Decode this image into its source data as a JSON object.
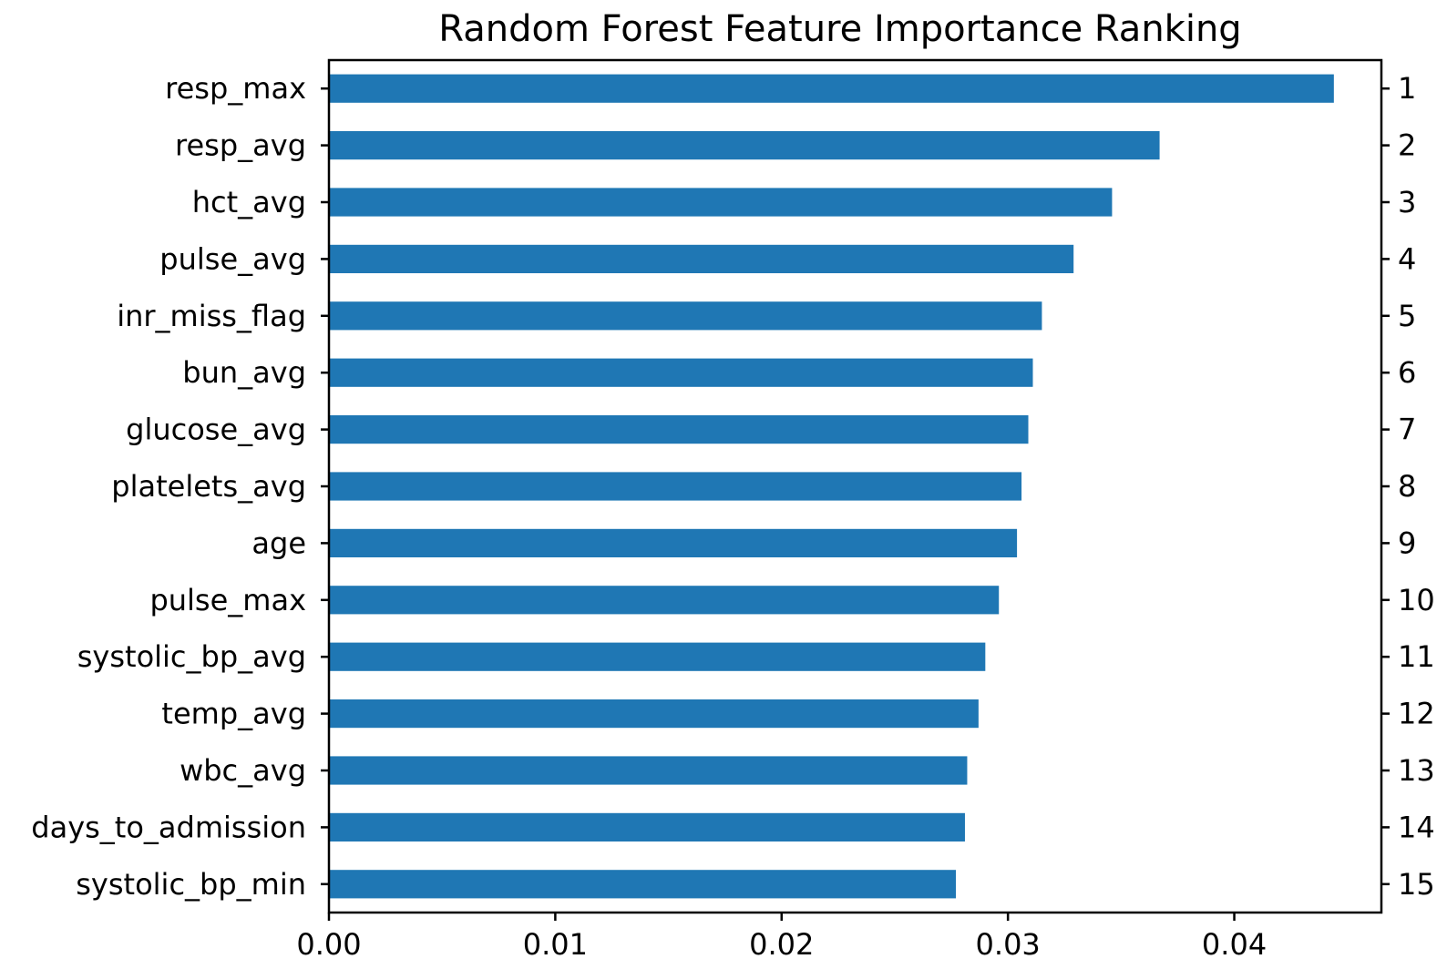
{
  "chart_data": {
    "type": "bar",
    "orientation": "horizontal",
    "title": "Random Forest Feature Importance Ranking",
    "xlabel": "",
    "ylabel": "",
    "xlim": [
      0,
      0.0465
    ],
    "x_ticks": [
      "0.00",
      "0.01",
      "0.02",
      "0.03",
      "0.04"
    ],
    "categories": [
      "resp_max",
      "resp_avg",
      "hct_avg",
      "pulse_avg",
      "inr_miss_flag",
      "bun_avg",
      "glucose_avg",
      "platelets_avg",
      "age",
      "pulse_max",
      "systolic_bp_avg",
      "temp_avg",
      "wbc_avg",
      "days_to_admission",
      "systolic_bp_min"
    ],
    "values": [
      0.0444,
      0.0367,
      0.0346,
      0.0329,
      0.0315,
      0.0311,
      0.0309,
      0.0306,
      0.0304,
      0.0296,
      0.029,
      0.0287,
      0.0282,
      0.0281,
      0.0277
    ],
    "ranks": [
      "1",
      "2",
      "3",
      "4",
      "5",
      "6",
      "7",
      "8",
      "9",
      "10",
      "11",
      "12",
      "13",
      "14",
      "15"
    ],
    "bar_color": "#1f77b4",
    "grid": false,
    "legend": "none"
  }
}
